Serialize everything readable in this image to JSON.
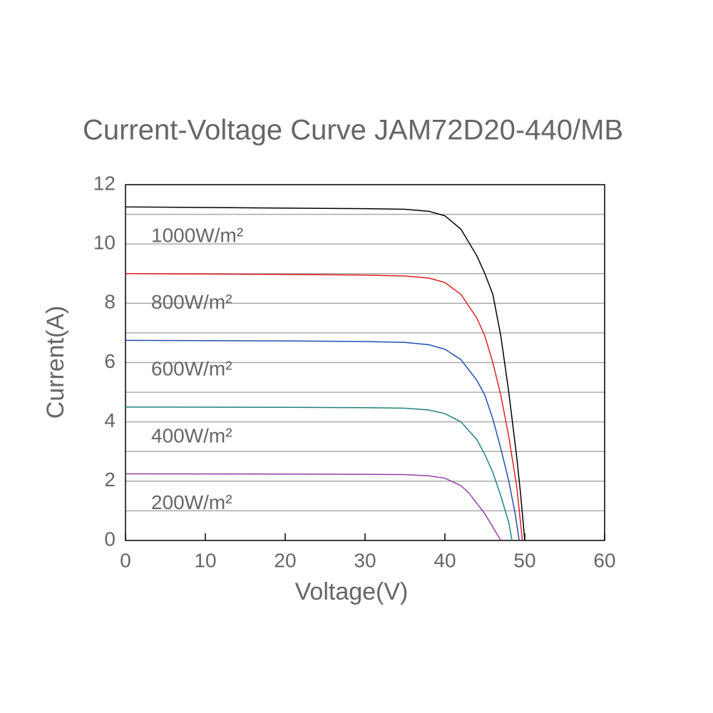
{
  "chart_data": {
    "type": "line",
    "title": "Current-Voltage Curve   JAM72D20-440/MB",
    "xlabel": "Voltage(V)",
    "ylabel": "Current(A)",
    "xlim": [
      0,
      60
    ],
    "xticks": [
      0,
      10,
      20,
      30,
      40,
      50,
      60
    ],
    "ylim": [
      0,
      12
    ],
    "yticks": [
      0,
      2,
      4,
      6,
      8,
      10,
      12
    ],
    "ygrid": [
      1,
      2,
      3,
      4,
      5,
      6,
      7,
      8,
      9,
      10,
      11
    ],
    "series": [
      {
        "name": "1000W/m²",
        "color": "#000000",
        "x": [
          0,
          10,
          20,
          30,
          35,
          38,
          40,
          42,
          44,
          45,
          46,
          47,
          48,
          49,
          49.5,
          50
        ],
        "values": [
          11.25,
          11.23,
          11.21,
          11.19,
          11.17,
          11.1,
          10.95,
          10.5,
          9.6,
          9.0,
          8.3,
          6.9,
          5.0,
          2.8,
          1.5,
          0
        ]
      },
      {
        "name": "800W/m²",
        "color": "#e02020",
        "x": [
          0,
          20,
          30,
          35,
          38,
          40,
          42,
          44,
          45,
          46,
          47,
          48,
          49,
          49.7
        ],
        "values": [
          9.0,
          8.97,
          8.95,
          8.92,
          8.85,
          8.7,
          8.3,
          7.5,
          6.9,
          6.0,
          4.9,
          3.5,
          1.8,
          0
        ]
      },
      {
        "name": "600W/m²",
        "color": "#2050b0",
        "x": [
          0,
          20,
          30,
          35,
          38,
          40,
          42,
          44,
          45,
          46,
          47,
          48,
          48.8,
          49.3
        ],
        "values": [
          6.75,
          6.73,
          6.71,
          6.68,
          6.6,
          6.45,
          6.1,
          5.4,
          4.9,
          4.1,
          3.1,
          2.0,
          0.9,
          0
        ]
      },
      {
        "name": "400W/m²",
        "color": "#208080",
        "x": [
          0,
          20,
          30,
          35,
          38,
          40,
          42,
          44,
          45,
          46,
          47,
          48,
          48.4
        ],
        "values": [
          4.5,
          4.49,
          4.48,
          4.46,
          4.4,
          4.28,
          4.0,
          3.4,
          2.9,
          2.3,
          1.5,
          0.6,
          0
        ]
      },
      {
        "name": "200W/m²",
        "color": "#9040a0",
        "x": [
          0,
          20,
          30,
          35,
          38,
          40,
          42,
          43,
          44,
          45,
          46,
          47
        ],
        "values": [
          2.25,
          2.24,
          2.23,
          2.22,
          2.18,
          2.1,
          1.85,
          1.6,
          1.25,
          0.9,
          0.45,
          0
        ]
      }
    ]
  }
}
